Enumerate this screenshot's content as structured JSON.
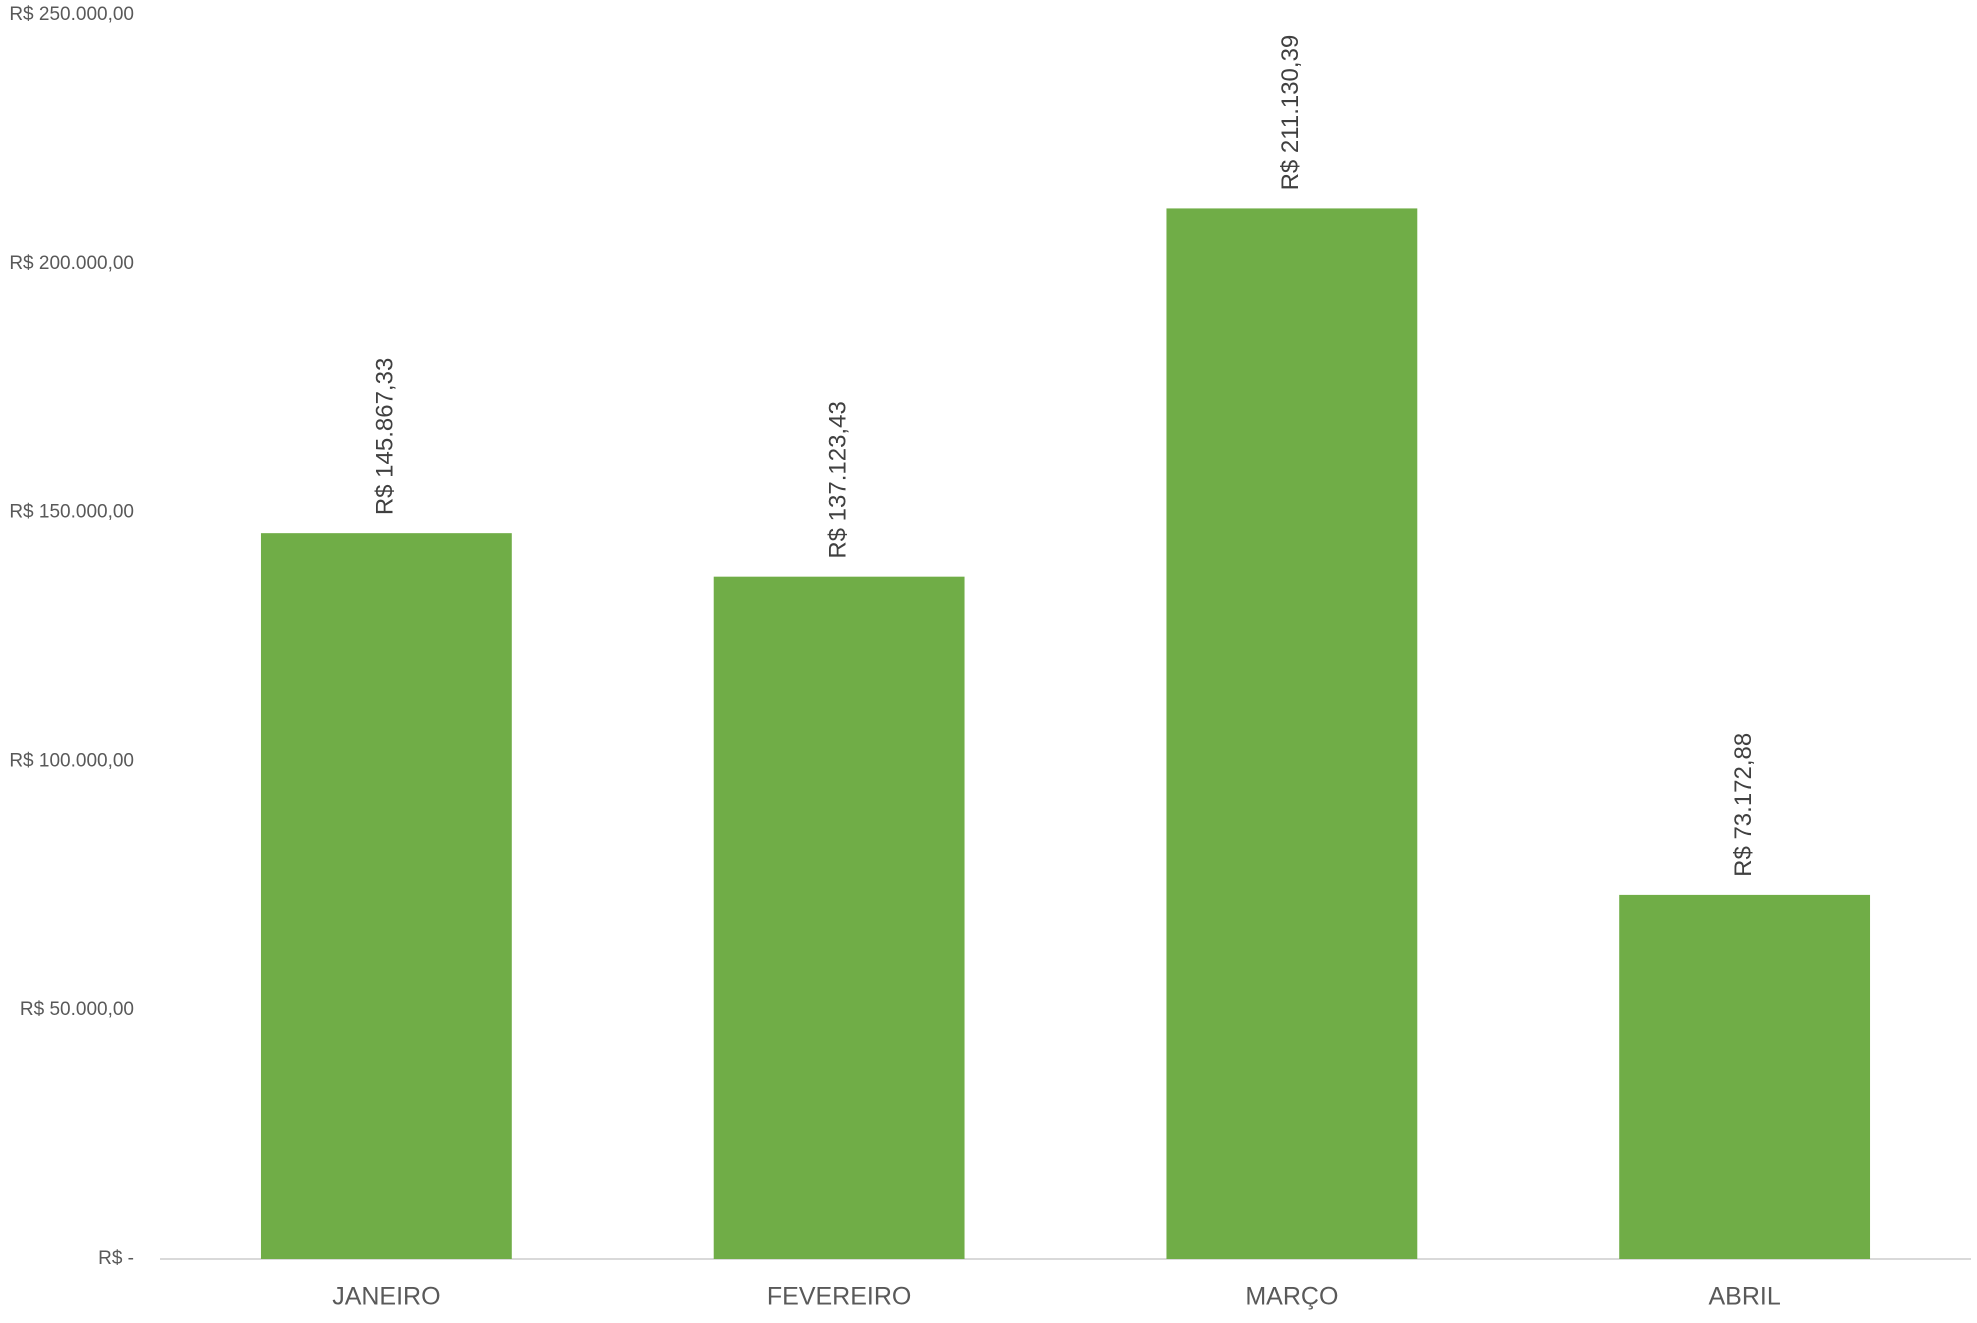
{
  "chart_data": {
    "type": "bar",
    "categories": [
      "JANEIRO",
      "FEVEREIRO",
      "MARÇO",
      "ABRIL"
    ],
    "values": [
      145867.33,
      137123.43,
      211130.39,
      73172.88
    ],
    "value_labels": [
      "R$ 145.867,33",
      "R$ 137.123,43",
      "R$ 211.130,39",
      "R$ 73.172,88"
    ],
    "color": "#70ad47",
    "ylim": [
      0,
      250000
    ],
    "yticks": [
      {
        "value": 0,
        "label": "R$ -"
      },
      {
        "value": 50000,
        "label": "R$ 50.000,00"
      },
      {
        "value": 100000,
        "label": "R$ 100.000,00"
      },
      {
        "value": 150000,
        "label": "R$ 150.000,00"
      },
      {
        "value": 200000,
        "label": "R$ 200.000,00"
      },
      {
        "value": 250000,
        "label": "R$ 250.000,00"
      }
    ],
    "grid": false
  }
}
